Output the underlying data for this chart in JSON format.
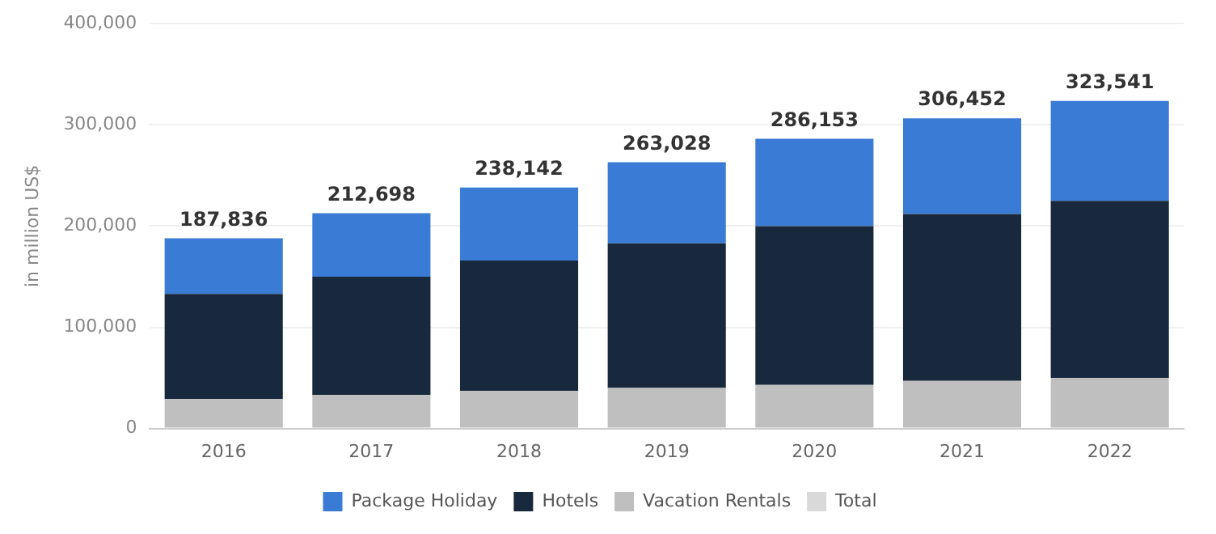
{
  "chart_data": {
    "type": "bar",
    "stacked": true,
    "ylabel": "in million US$",
    "categories": [
      "2016",
      "2017",
      "2018",
      "2019",
      "2020",
      "2021",
      "2022"
    ],
    "series": [
      {
        "name": "Total",
        "color": "#d9d9d9",
        "values": [
          null,
          null,
          null,
          null,
          null,
          null,
          null
        ]
      },
      {
        "name": "Vacation Rentals",
        "color": "#bfbfbf",
        "values": [
          29000,
          33000,
          37000,
          40000,
          43000,
          47000,
          50000
        ]
      },
      {
        "name": "Hotels",
        "color": "#19293d",
        "values": [
          104000,
          117000,
          129000,
          143000,
          157000,
          165000,
          175000
        ]
      },
      {
        "name": "Package Holiday",
        "color": "#3a7bd5",
        "values": [
          54836,
          62698,
          72142,
          80028,
          86153,
          94452,
          98541
        ]
      }
    ],
    "totals": [
      "187,836",
      "212,698",
      "238,142",
      "263,028",
      "286,153",
      "306,452",
      "323,541"
    ],
    "ylim": [
      0,
      400000
    ],
    "yticks": [
      {
        "value": 0,
        "label": "0"
      },
      {
        "value": 100000,
        "label": "100,000"
      },
      {
        "value": 200000,
        "label": "200,000"
      },
      {
        "value": 300000,
        "label": "300,000"
      },
      {
        "value": 400000,
        "label": "400,000"
      }
    ],
    "grid": "y",
    "legend": "bottom"
  }
}
